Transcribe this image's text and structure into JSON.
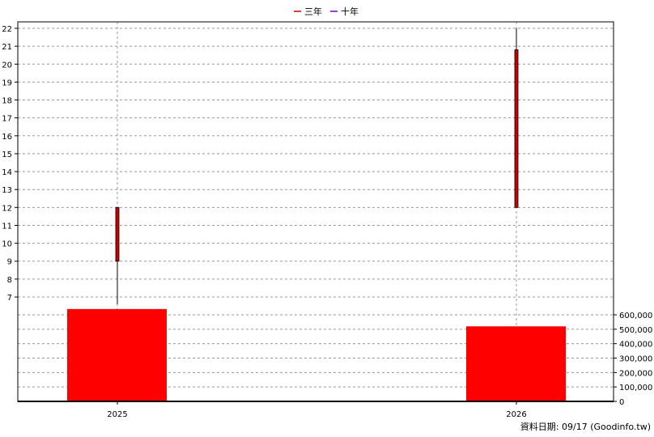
{
  "chart_data": {
    "type": "candlestick",
    "legend": [
      {
        "name": "三年",
        "color": "#cc0000"
      },
      {
        "name": "十年",
        "color": "#7700cc"
      }
    ],
    "legend_position": "top-center",
    "categories": [
      "2025",
      "2026"
    ],
    "price": {
      "ylim": [
        6.5,
        22.2
      ],
      "ticks": [
        7,
        8,
        9,
        10,
        11,
        12,
        13,
        14,
        15,
        16,
        17,
        18,
        19,
        20,
        21,
        22
      ],
      "candles": [
        {
          "x": "2025",
          "low": 6.6,
          "open": 9.0,
          "close": 12.0,
          "high": 12.0
        },
        {
          "x": "2026",
          "low": 12.0,
          "open": 12.0,
          "close": 20.8,
          "high": 22.0
        }
      ],
      "candle_color": "#cc0000"
    },
    "volume": {
      "ylim": [
        0,
        660000
      ],
      "ticks": [
        0,
        100000,
        200000,
        300000,
        400000,
        500000,
        600000
      ],
      "tick_labels": [
        "0",
        "100,000",
        "200,000",
        "300,000",
        "400,000",
        "500,000",
        "600,000"
      ],
      "values": [
        640000,
        520000
      ],
      "bar_color": "#ff0000"
    },
    "grid": true,
    "footer": "資料日期: 09/17  (Goodinfo.tw)"
  }
}
